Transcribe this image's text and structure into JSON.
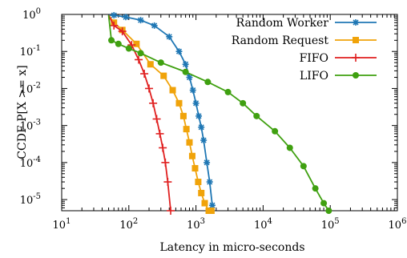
{
  "chart_data": {
    "type": "line",
    "title": "",
    "xlabel": "Latency in micro-seconds",
    "ylabel": "CCDF    P[X >= x]",
    "xscale": "log",
    "yscale": "log",
    "xlim": [
      10,
      1000000
    ],
    "ylim": [
      5e-06,
      1
    ],
    "grid": false,
    "legend_position": "top-right",
    "x_ticks": [
      {
        "value": 10,
        "base": "10",
        "exp": "1"
      },
      {
        "value": 100,
        "base": "10",
        "exp": "2"
      },
      {
        "value": 1000,
        "base": "10",
        "exp": "3"
      },
      {
        "value": 10000,
        "base": "10",
        "exp": "4"
      },
      {
        "value": 100000,
        "base": "10",
        "exp": "5"
      },
      {
        "value": 1000000,
        "base": "10",
        "exp": "6"
      }
    ],
    "y_ticks": [
      {
        "value": 1,
        "base": "10",
        "exp": "0"
      },
      {
        "value": 0.1,
        "base": "10",
        "exp": "-1"
      },
      {
        "value": 0.01,
        "base": "10",
        "exp": "-2"
      },
      {
        "value": 0.001,
        "base": "10",
        "exp": "-3"
      },
      {
        "value": 0.0001,
        "base": "10",
        "exp": "-4"
      },
      {
        "value": 1e-05,
        "base": "10",
        "exp": "-5"
      }
    ],
    "series": [
      {
        "name": "Random Worker",
        "color": "#1f77b4",
        "marker": "asterisk",
        "x": [
          50,
          60,
          90,
          150,
          240,
          400,
          560,
          700,
          800,
          900,
          1000,
          1100,
          1200,
          1300,
          1450,
          1600,
          1750
        ],
        "y": [
          0.95,
          0.95,
          0.85,
          0.7,
          0.5,
          0.25,
          0.1,
          0.045,
          0.02,
          0.009,
          0.004,
          0.0018,
          0.0009,
          0.0004,
          0.0001,
          3e-05,
          7e-06
        ]
      },
      {
        "name": "Random Request",
        "color": "#f0a30a",
        "marker": "square",
        "x": [
          50,
          60,
          80,
          130,
          210,
          330,
          450,
          560,
          650,
          720,
          800,
          880,
          970,
          1080,
          1200,
          1350,
          1550,
          1700
        ],
        "y": [
          0.95,
          0.6,
          0.38,
          0.16,
          0.045,
          0.022,
          0.009,
          0.004,
          0.0018,
          0.0008,
          0.00035,
          0.00015,
          7e-05,
          3e-05,
          1.5e-05,
          8e-06,
          5e-06,
          5e-06
        ]
      },
      {
        "name": "FIFO",
        "color": "#e02020",
        "marker": "plus",
        "x": [
          50,
          60,
          80,
          110,
          140,
          170,
          200,
          230,
          260,
          290,
          320,
          350,
          380,
          420
        ],
        "y": [
          0.95,
          0.5,
          0.35,
          0.15,
          0.06,
          0.025,
          0.01,
          0.004,
          0.0015,
          0.0006,
          0.00025,
          0.0001,
          3e-05,
          5e-06
        ]
      },
      {
        "name": "LIFO",
        "color": "#3fa010",
        "marker": "circle",
        "x": [
          50,
          55,
          70,
          100,
          150,
          300,
          700,
          1500,
          3000,
          5000,
          8000,
          15000,
          25000,
          40000,
          60000,
          80000,
          95000
        ],
        "y": [
          0.95,
          0.2,
          0.16,
          0.12,
          0.09,
          0.05,
          0.028,
          0.015,
          0.008,
          0.004,
          0.0018,
          0.0007,
          0.00025,
          8e-05,
          2e-05,
          8e-06,
          5e-06
        ]
      }
    ]
  }
}
